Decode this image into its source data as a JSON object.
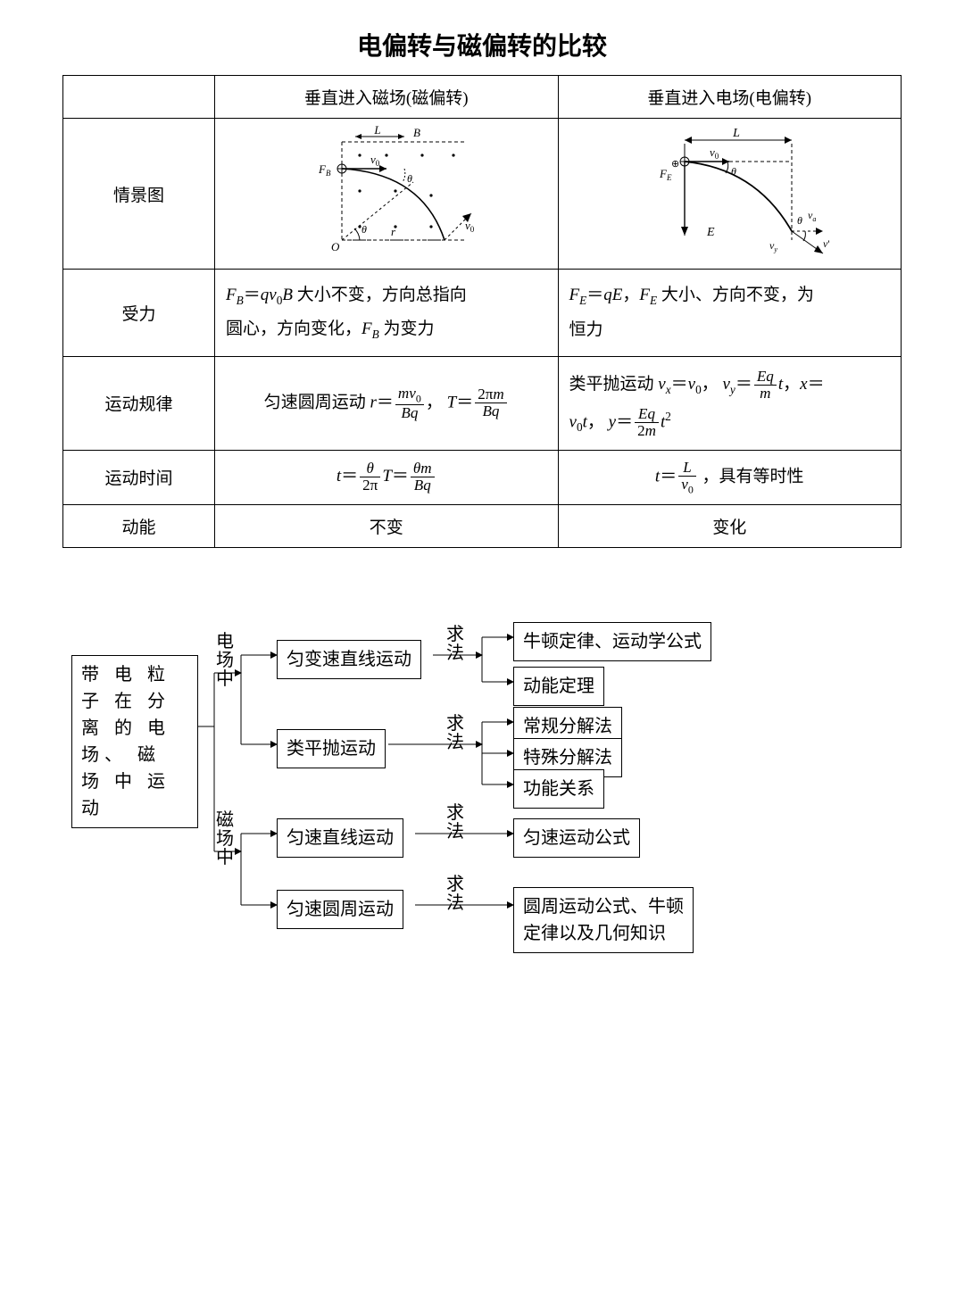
{
  "title": "电偏转与磁偏转的比较",
  "table": {
    "head_col1": "垂直进入磁场(磁偏转)",
    "head_col2": "垂直进入电场(电偏转)",
    "row_labels": {
      "fig": "情景图",
      "force": "受力",
      "motion": "运动规律",
      "time": "运动时间",
      "ke": "动能"
    },
    "cells": {
      "ke_mag": "不变",
      "ke_ele": "变化"
    },
    "diagram": {
      "mag": {
        "FB": "F_B",
        "B": "B",
        "L": "L",
        "v0": "v₀",
        "theta": "θ",
        "O": "O",
        "r": "r"
      },
      "ele": {
        "FE": "F_E",
        "E": "E",
        "L": "L",
        "v0": "v₀",
        "theta": "θ",
        "va": "v_a",
        "vy": "v_y",
        "vp": "v'"
      }
    }
  },
  "flow": {
    "root": "带 电 粒\n子 在 分\n离 的 电\n场、 磁\n场 中 运\n动",
    "branch1": "电\n场\n中",
    "branch2": "磁\n场\n中",
    "seek": "求\n法",
    "n1": "匀变速直线运动",
    "n2": "类平抛运动",
    "n3": "匀速直线运动",
    "n4": "匀速圆周运动",
    "r1a": "牛顿定律、运动学公式",
    "r1b": "动能定理",
    "r2a": "常规分解法",
    "r2b": "特殊分解法",
    "r2c": "功能关系",
    "r3": "匀速运动公式",
    "r4": "圆周运动公式、牛顿\n定律以及几何知识"
  },
  "colors": {
    "line": "#000000"
  }
}
